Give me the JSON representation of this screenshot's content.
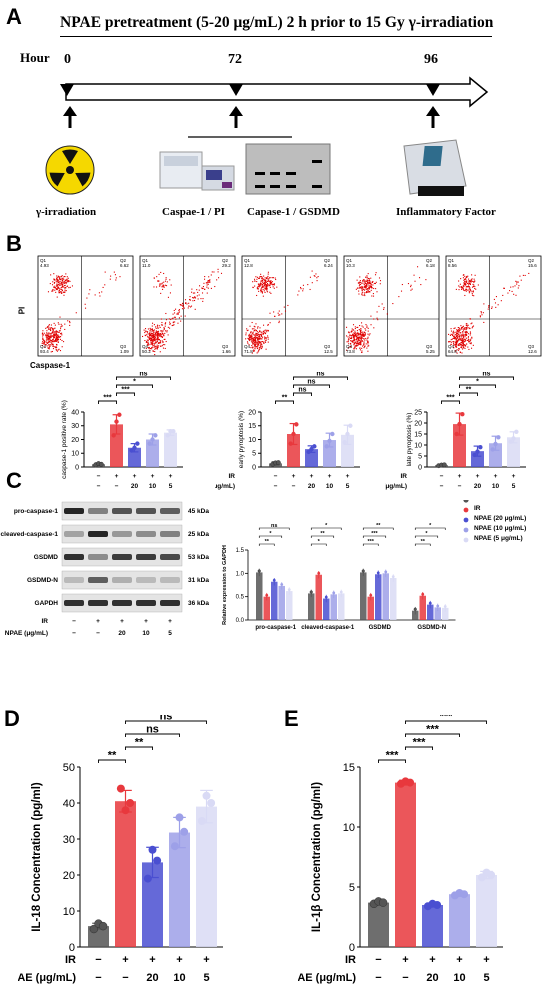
{
  "panel_labels": {
    "a": "A",
    "b": "B",
    "c": "C",
    "d": "D",
    "e": "E"
  },
  "panel_a": {
    "title": "NPAE pretreatment (5-20 μg/mL) 2 h prior to 15 Gy γ-irradiation",
    "hour_label": "Hour",
    "timepoints": [
      "0",
      "72",
      "96"
    ],
    "steps": [
      "γ-irradiation",
      "Caspae-1 / PI",
      "Capase-1 / GSDMD",
      "Inflammatory Factor"
    ]
  },
  "panel_b": {
    "flow_plots": [
      {
        "q1": "4.93",
        "q2": "6.62",
        "q3": "1.09",
        "q4": "93.4"
      },
      {
        "q1": "11.0",
        "q2": "29.2",
        "q3": "1.66",
        "q4": "50.2"
      },
      {
        "q1": "12.8",
        "q2": "6.24",
        "q3": "12.5",
        "q4": "71.8"
      },
      {
        "q1": "10.3",
        "q2": "6.18",
        "q3": "5.25",
        "q4": "73.8"
      },
      {
        "q1": "8.56",
        "q2": "15.6",
        "q3": "12.6",
        "q4": "64.8"
      }
    ],
    "quadrant_names": [
      "Q1",
      "Q2",
      "Q3",
      "Q4"
    ],
    "y_axis": "PI",
    "x_axis": "Caspase-1",
    "row_labels": {
      "ir": "IR",
      "npae": "NPAE (μg/mL)"
    },
    "ir_signs": [
      "−",
      "+",
      "+",
      "+",
      "+"
    ],
    "npae_values": [
      "−",
      "−",
      "20",
      "10",
      "5"
    ]
  },
  "panel_c": {
    "blot_labels": [
      "pro-caspase-1",
      "cleaved-caspase-1",
      "GSDMD",
      "GSDMD-N",
      "GAPDH"
    ],
    "blot_sizes": [
      "45 kDa",
      "25 kDa",
      "53 kDa",
      "31 kDa",
      "36 kDa"
    ],
    "row_labels": {
      "ir": "IR",
      "npae": "NPAE (μg/mL)"
    },
    "ir_signs": [
      "−",
      "+",
      "+",
      "+",
      "+"
    ],
    "npae_values": [
      "−",
      "−",
      "20",
      "10",
      "5"
    ]
  },
  "colors": [
    "#555555",
    "#e8383d",
    "#4a4fd1",
    "#9da0e8",
    "#d9daf5"
  ],
  "chart_data": [
    {
      "type": "bar",
      "panel": "B1",
      "ylabel": "caspase-1 positive rate (%)",
      "ylim": [
        0,
        40
      ],
      "yticks": [
        "0",
        "10",
        "20",
        "30",
        "40"
      ],
      "values": [
        2,
        31,
        14,
        20,
        25
      ],
      "errors": [
        1,
        7,
        3,
        4,
        2
      ],
      "points": [
        [
          1.5,
          2.5,
          2
        ],
        [
          23,
          33,
          38
        ],
        [
          12,
          14,
          17
        ],
        [
          17,
          20,
          23
        ],
        [
          23,
          26,
          26
        ]
      ],
      "sig": [
        {
          "a": 0,
          "b": 1,
          "label": "***"
        },
        {
          "a": 1,
          "b": 2,
          "label": "***"
        },
        {
          "a": 1,
          "b": 3,
          "label": "*"
        },
        {
          "a": 1,
          "b": 4,
          "label": "ns"
        }
      ]
    },
    {
      "type": "bar",
      "panel": "B2",
      "ylabel": "early pyroptosis (%)",
      "ylim": [
        0,
        20
      ],
      "yticks": [
        "0",
        "5",
        "10",
        "15",
        "20"
      ],
      "values": [
        1.3,
        12,
        6.5,
        9.8,
        11.7
      ],
      "errors": [
        0.6,
        3.8,
        1.2,
        2.5,
        3.5
      ],
      "points": [
        [
          1,
          1.5,
          1.6
        ],
        [
          8.5,
          12,
          15.5
        ],
        [
          5.5,
          6.5,
          7.5
        ],
        [
          7.5,
          9.5,
          12
        ],
        [
          9,
          12,
          15
        ]
      ],
      "sig": [
        {
          "a": 0,
          "b": 1,
          "label": "**"
        },
        {
          "a": 1,
          "b": 2,
          "label": "ns"
        },
        {
          "a": 1,
          "b": 3,
          "label": "ns"
        },
        {
          "a": 1,
          "b": 4,
          "label": "ns"
        }
      ]
    },
    {
      "type": "bar",
      "panel": "B3",
      "ylabel": "late pyroptosis (%)",
      "ylim": [
        0,
        25
      ],
      "yticks": [
        "0",
        "5",
        "10",
        "15",
        "20",
        "25"
      ],
      "values": [
        0.8,
        19.5,
        7.2,
        10.8,
        13.5
      ],
      "errors": [
        0.3,
        5,
        2.3,
        3.2,
        2.5
      ],
      "points": [
        [
          0.6,
          0.9,
          1
        ],
        [
          15,
          19.5,
          24
        ],
        [
          5.5,
          7,
          9
        ],
        [
          8,
          10.5,
          13.5
        ],
        [
          11.5,
          13,
          16
        ]
      ],
      "sig": [
        {
          "a": 0,
          "b": 1,
          "label": "***"
        },
        {
          "a": 1,
          "b": 2,
          "label": "**"
        },
        {
          "a": 1,
          "b": 3,
          "label": "*"
        },
        {
          "a": 1,
          "b": 4,
          "label": "ns"
        }
      ]
    },
    {
      "type": "bar",
      "panel": "C",
      "ylabel": "Relative expression to GAPDH",
      "ylim": [
        0,
        1.5
      ],
      "yticks": [
        "0.0",
        "0.5",
        "1.0",
        "1.5"
      ],
      "categories": [
        "pro-caspase-1",
        "cleaved-caspase-1",
        "GSDMD",
        "GSDMD-N"
      ],
      "series": [
        {
          "name": "C",
          "values": [
            1.02,
            0.57,
            1.02,
            0.2
          ]
        },
        {
          "name": "IR",
          "values": [
            0.5,
            0.97,
            0.5,
            0.52
          ]
        },
        {
          "name": "NPAE (20 μg/mL)",
          "values": [
            0.82,
            0.46,
            0.98,
            0.33
          ]
        },
        {
          "name": "NPAE (10 μg/mL)",
          "values": [
            0.73,
            0.55,
            1.0,
            0.27
          ]
        },
        {
          "name": "NPAE (5 μg/mL)",
          "values": [
            0.62,
            0.57,
            0.9,
            0.26
          ]
        }
      ],
      "sig_labels": [
        [
          "**",
          "*",
          "ns"
        ],
        [
          "*",
          "**",
          "*"
        ],
        [
          "***",
          "***",
          "**"
        ],
        [
          "**",
          "*",
          "*"
        ]
      ]
    },
    {
      "type": "bar",
      "panel": "D",
      "ylabel": "IL-18 Concentration (pg/ml)",
      "ylim": [
        0,
        50
      ],
      "yticks": [
        "0",
        "10",
        "20",
        "30",
        "40",
        "50"
      ],
      "values": [
        5.8,
        40.5,
        23.5,
        31.8,
        39
      ],
      "errors": [
        0.8,
        3,
        4.2,
        4.2,
        4.5
      ],
      "points": [
        [
          5,
          6.5,
          5.8
        ],
        [
          44,
          38,
          40
        ],
        [
          19,
          27,
          24
        ],
        [
          28,
          36,
          32
        ],
        [
          35,
          42,
          40
        ]
      ],
      "sig": [
        {
          "a": 0,
          "b": 1,
          "label": "**"
        },
        {
          "a": 1,
          "b": 2,
          "label": "**"
        },
        {
          "a": 1,
          "b": 3,
          "label": "ns"
        },
        {
          "a": 1,
          "b": 4,
          "label": "ns"
        }
      ]
    },
    {
      "type": "bar",
      "panel": "E",
      "ylabel": "IL-1β Concentration (pg/ml)",
      "ylim": [
        0,
        15
      ],
      "yticks": [
        "0",
        "5",
        "10",
        "15"
      ],
      "values": [
        3.7,
        13.7,
        3.5,
        4.4,
        6
      ],
      "errors": [
        0.15,
        0.2,
        0.15,
        0.15,
        0.3
      ],
      "points": [
        [
          3.6,
          3.8,
          3.7
        ],
        [
          13.6,
          13.8,
          13.7
        ],
        [
          3.4,
          3.6,
          3.5
        ],
        [
          4.3,
          4.5,
          4.4
        ],
        [
          5.8,
          6.2,
          6
        ]
      ],
      "sig": [
        {
          "a": 0,
          "b": 1,
          "label": "***"
        },
        {
          "a": 1,
          "b": 2,
          "label": "***"
        },
        {
          "a": 1,
          "b": 3,
          "label": "***"
        },
        {
          "a": 1,
          "b": 4,
          "label": "***"
        }
      ]
    }
  ],
  "chart_rows": {
    "ir": "IR",
    "npae": "NPAE (μg/mL)",
    "ir_signs": [
      "−",
      "+",
      "+",
      "+",
      "+"
    ],
    "npae_values": [
      "−",
      "−",
      "20",
      "10",
      "5"
    ]
  }
}
